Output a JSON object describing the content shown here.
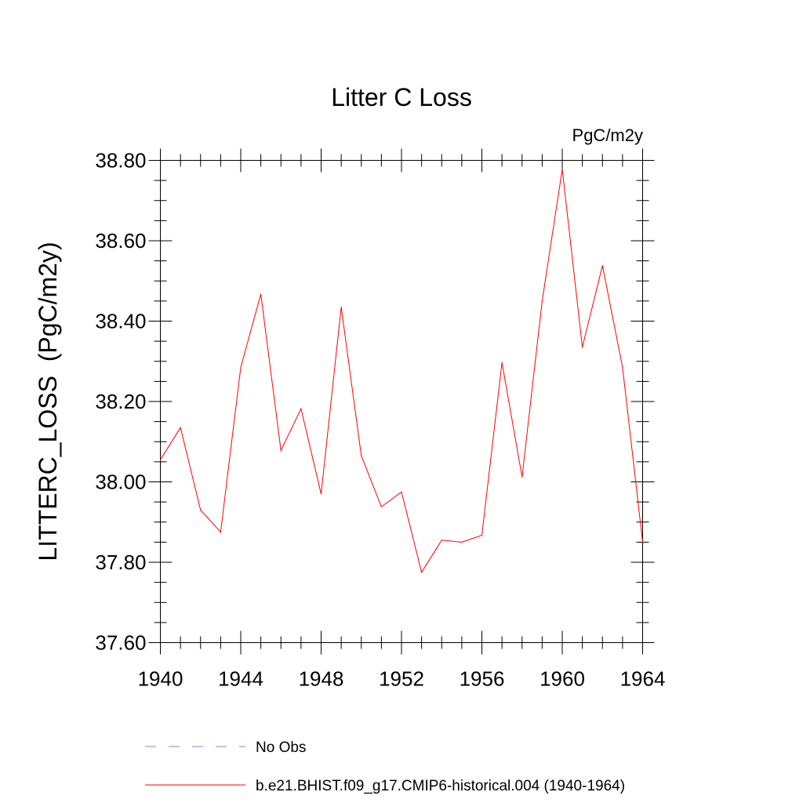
{
  "chart_data": {
    "type": "line",
    "title": "Litter C Loss",
    "units_label": "PgC/m2y",
    "ylabel": "LITTERC_LOSS  (PgC/m2y)",
    "xlabel": "",
    "xlim": [
      1940,
      1964
    ],
    "ylim": [
      37.6,
      38.8
    ],
    "x_ticks": [
      1940,
      1944,
      1948,
      1952,
      1956,
      1960,
      1964
    ],
    "x_tick_labels": [
      "1940",
      "1944",
      "1948",
      "1952",
      "1956",
      "1960",
      "1964"
    ],
    "y_ticks": [
      37.6,
      37.8,
      38.0,
      38.2,
      38.4,
      38.6,
      38.8
    ],
    "y_tick_labels": [
      "37.60",
      "37.80",
      "38.00",
      "38.20",
      "38.40",
      "38.60",
      "38.80"
    ],
    "x_minor_step": 1,
    "y_minor_step": 0.05,
    "grid": false,
    "legend_position": "bottom",
    "series": [
      {
        "name": "b.e21.BHIST.f09_g17.CMIP6-historical.004 (1940-1964)",
        "color": "#ff0000",
        "style": "solid",
        "x": [
          1940,
          1941,
          1942,
          1943,
          1944,
          1945,
          1946,
          1947,
          1948,
          1949,
          1950,
          1951,
          1952,
          1953,
          1954,
          1955,
          1956,
          1957,
          1958,
          1959,
          1960,
          1961,
          1962,
          1963,
          1964
        ],
        "values": [
          38.055,
          38.135,
          37.93,
          37.875,
          38.285,
          38.467,
          38.078,
          38.182,
          37.97,
          38.435,
          38.065,
          37.938,
          37.975,
          37.775,
          37.855,
          37.85,
          37.867,
          38.297,
          38.012,
          38.45,
          38.778,
          38.335,
          38.538,
          38.285,
          37.85
        ]
      }
    ],
    "legend": [
      {
        "label": "No Obs",
        "color": "#8a7fd6",
        "style": "dashed"
      },
      {
        "label": "b.e21.BHIST.f09_g17.CMIP6-historical.004 (1940-1964)",
        "color": "#ff0000",
        "style": "solid"
      }
    ]
  }
}
